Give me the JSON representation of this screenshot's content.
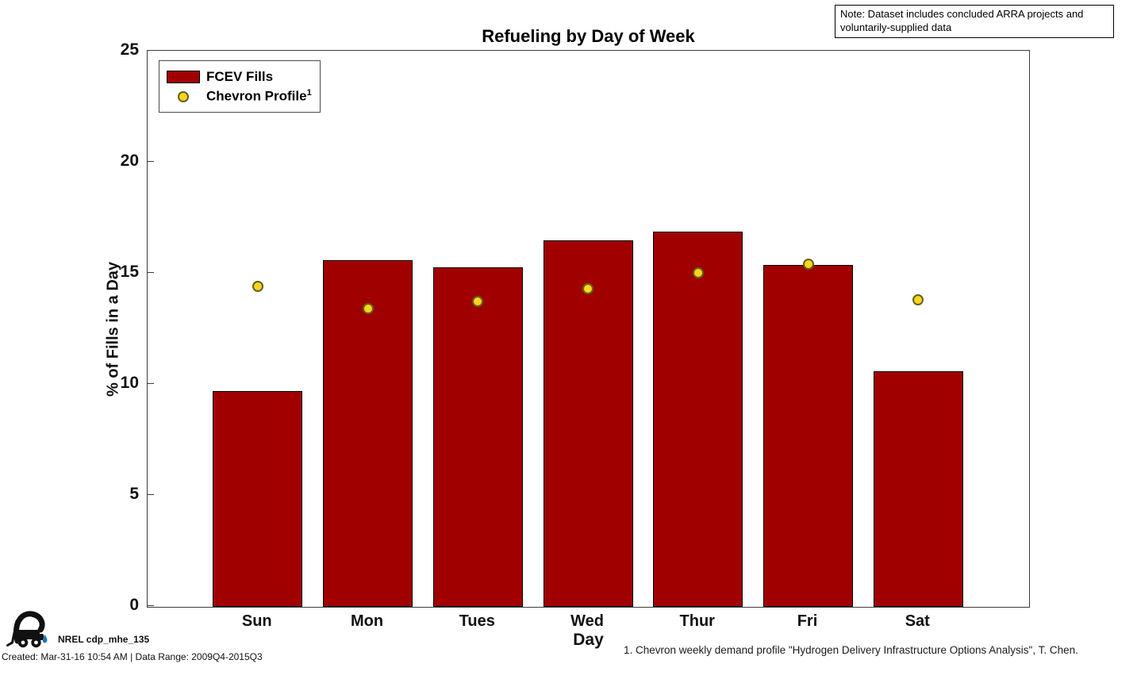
{
  "note": {
    "text": "Note: Dataset includes concluded ARRA projects and voluntarily-supplied data"
  },
  "legend": {
    "bar_label": "FCEV Fills",
    "marker_label": "Chevron Profile",
    "marker_superscript": "1"
  },
  "footer": {
    "id_label": "NREL cdp_mhe_135",
    "created": "Created: Mar-31-16 10:54 AM | Data Range: 2009Q4-2015Q3",
    "logo_icon": "forklift-with-hydrogen-drop"
  },
  "footnote": "1. Chevron weekly demand profile \"Hydrogen Delivery Infrastructure Options Analysis\", T. Chen.",
  "chart_data": {
    "type": "bar",
    "title": "Refueling by Day of Week",
    "xlabel": "Day",
    "ylabel": "% of Fills in a Day",
    "ylim": [
      0,
      25
    ],
    "yticks": [
      0,
      5,
      10,
      15,
      20,
      25
    ],
    "grid": false,
    "legend_position": "top-left",
    "categories": [
      "Sun",
      "Mon",
      "Tues",
      "Wed",
      "Thur",
      "Fri",
      "Sat"
    ],
    "series": [
      {
        "name": "FCEV Fills",
        "type": "bar",
        "color": "#a00000",
        "edge_color": "#000000",
        "values": [
          9.7,
          15.6,
          15.3,
          16.5,
          16.9,
          15.4,
          10.6
        ]
      },
      {
        "name": "Chevron Profile",
        "type": "scatter",
        "color": "#ffd41e",
        "edge_color": "#60621c",
        "values": [
          14.4,
          13.4,
          13.7,
          14.3,
          15.0,
          15.4,
          13.8
        ]
      }
    ],
    "colors": {
      "axis": "#3c3c3c",
      "background": "#ffffff",
      "text": "#000000"
    }
  }
}
